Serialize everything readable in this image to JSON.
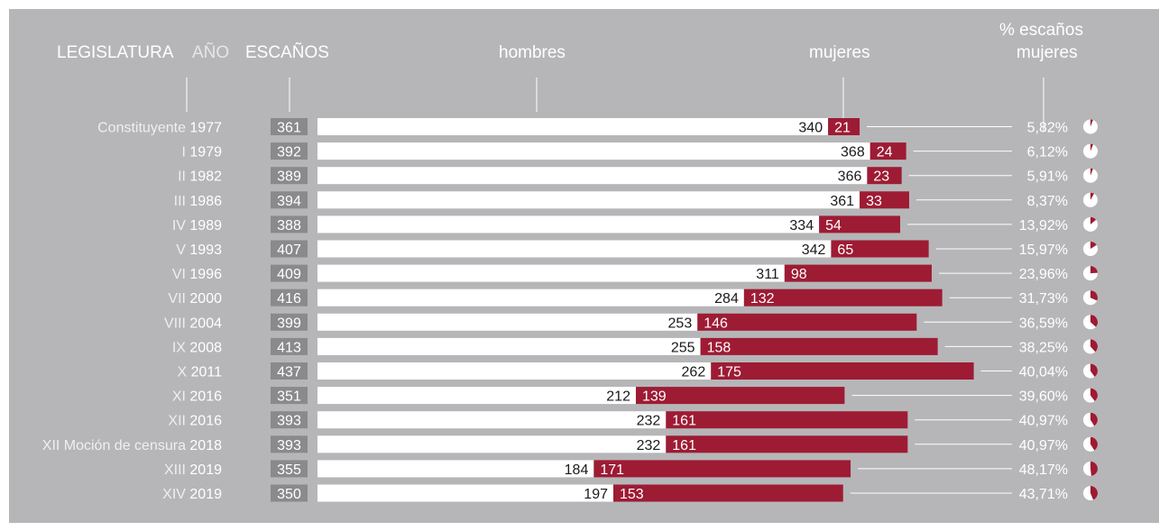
{
  "colors": {
    "background": "#b6b6b8",
    "men_bar": "#ffffff",
    "women_bar": "#9e1b34",
    "seats_box": "#8a8a8c",
    "label_text": "#ffffff",
    "year_text": "#ffffff",
    "legis_text": "#efefef"
  },
  "headers": {
    "legislatura": "LEGISLATURA",
    "anio": "AÑO",
    "escanos": "ESCAÑOS",
    "hombres": "hombres",
    "mujeres": "mujeres",
    "pct_line1": "% escaños",
    "pct_line2": "mujeres"
  },
  "chart_data": {
    "type": "bar",
    "stacked": true,
    "categories": [
      {
        "legislatura": "Constituyente",
        "anio": "1977"
      },
      {
        "legislatura": "I",
        "anio": "1979"
      },
      {
        "legislatura": "II",
        "anio": "1982"
      },
      {
        "legislatura": "III",
        "anio": "1986"
      },
      {
        "legislatura": "IV",
        "anio": "1989"
      },
      {
        "legislatura": "V",
        "anio": "1993"
      },
      {
        "legislatura": "VI",
        "anio": "1996"
      },
      {
        "legislatura": "VII",
        "anio": "2000"
      },
      {
        "legislatura": "VIII",
        "anio": "2004"
      },
      {
        "legislatura": "IX",
        "anio": "2008"
      },
      {
        "legislatura": "X",
        "anio": "2011"
      },
      {
        "legislatura": "XI",
        "anio": "2016"
      },
      {
        "legislatura": "XII",
        "anio": "2016"
      },
      {
        "legislatura": "XII Moción de censura",
        "anio": "2018"
      },
      {
        "legislatura": "XIII",
        "anio": "2019"
      },
      {
        "legislatura": "XIV",
        "anio": "2019"
      }
    ],
    "escanos": [
      361,
      392,
      389,
      394,
      388,
      407,
      409,
      416,
      399,
      413,
      437,
      351,
      393,
      393,
      355,
      350
    ],
    "series": [
      {
        "name": "hombres",
        "values": [
          340,
          368,
          366,
          361,
          334,
          342,
          311,
          284,
          253,
          255,
          262,
          212,
          232,
          232,
          184,
          197
        ]
      },
      {
        "name": "mujeres",
        "values": [
          21,
          24,
          23,
          33,
          54,
          65,
          98,
          132,
          146,
          158,
          175,
          139,
          161,
          161,
          171,
          153
        ]
      }
    ],
    "pct_mujeres": [
      "5,82%",
      "6,12%",
      "5,91%",
      "8,37%",
      "13,92%",
      "15,97%",
      "23,96%",
      "31,73%",
      "36,59%",
      "38,25%",
      "40,04%",
      "39,60%",
      "40,97%",
      "40,97%",
      "48,17%",
      "43,71%"
    ],
    "pct_values": [
      5.82,
      6.12,
      5.91,
      8.37,
      13.92,
      15.97,
      23.96,
      31.73,
      36.59,
      38.25,
      40.04,
      39.6,
      40.97,
      40.97,
      48.17,
      43.71
    ]
  }
}
